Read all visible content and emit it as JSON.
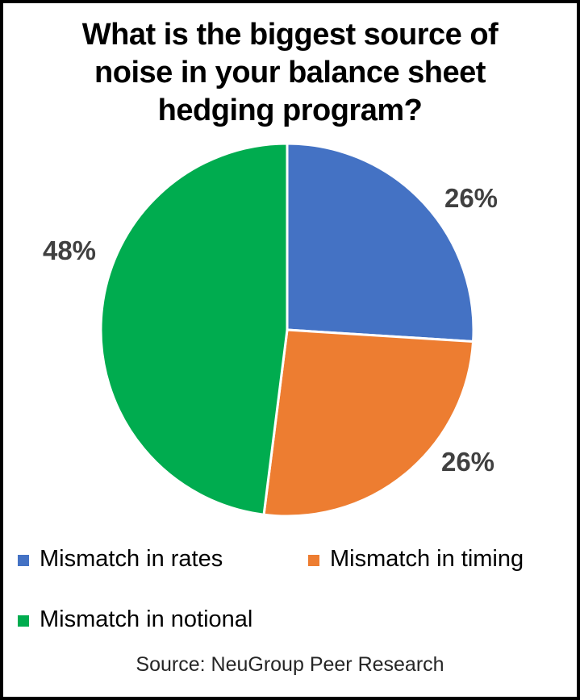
{
  "chart_data": {
    "type": "pie",
    "title": "What is the biggest source of noise in your balance sheet hedging program?",
    "title_lines": [
      "What is the biggest source of",
      "noise in your balance sheet",
      "hedging program?"
    ],
    "start_angle_deg": 0,
    "direction": "clockwise",
    "legend_position": "bottom",
    "slices": [
      {
        "label": "Mismatch in rates",
        "value": 26,
        "pct_label": "26%",
        "color": "#4472C4"
      },
      {
        "label": "Mismatch in timing",
        "value": 26,
        "pct_label": "26%",
        "color": "#ED7D31"
      },
      {
        "label": "Mismatch in notional",
        "value": 48,
        "pct_label": "48%",
        "color": "#00AC4F"
      }
    ],
    "separator_color": "#FFFFFF",
    "data_label_color": "#404040",
    "source": "Source: NeuGroup Peer Research"
  }
}
